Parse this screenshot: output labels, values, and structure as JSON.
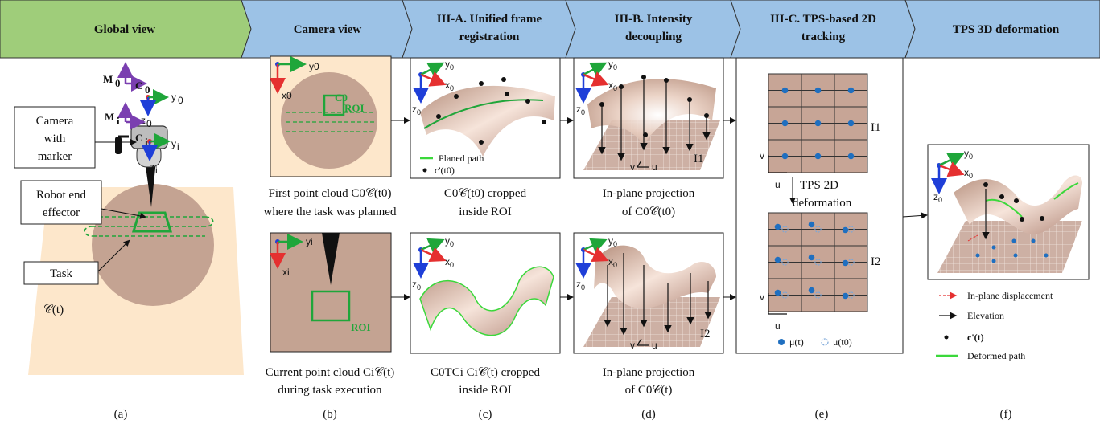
{
  "headers": [
    {
      "id": "global",
      "text": "Global view",
      "line2": ""
    },
    {
      "id": "camera",
      "text": "Camera view",
      "line2": ""
    },
    {
      "id": "iiia",
      "text": "III-A. Unified frame",
      "line2": "registration"
    },
    {
      "id": "iiib",
      "text": "III-B. Intensity",
      "line2": "decoupling"
    },
    {
      "id": "iiic",
      "text": "III-C. TPS-based 2D",
      "line2": "tracking"
    },
    {
      "id": "tps3d",
      "text": "TPS 3D deformation",
      "line2": ""
    }
  ],
  "global_view": {
    "camera_label": [
      "Camera",
      "with",
      "marker"
    ],
    "effector_label": [
      "Robot end",
      "effector"
    ],
    "task_label": "Task",
    "cloud_label": "𝒞(t)",
    "frames": {
      "m0": "M",
      "m0_sub": "0",
      "c0": "C",
      "c0_sub": "0",
      "mi": "M",
      "mi_sub": "i",
      "ci": "C",
      "ci_sub": "i",
      "y0": "y",
      "y0_sub": "0",
      "z0": "z",
      "z0_sub": "0",
      "yi": "y",
      "yi_sub": "i",
      "zi": "z",
      "zi_sub": "i"
    }
  },
  "panels": {
    "b_top": {
      "y_axis": "y0",
      "x_axis": "x0",
      "roi": "ROI",
      "roi_sup": "C0",
      "caption": [
        "First point cloud C0𝒞(t0)",
        "where the task was planned"
      ]
    },
    "b_bottom": {
      "y_axis": "yi",
      "x_axis": "xi",
      "roi": "ROI",
      "caption": [
        "Current point cloud Ci𝒞(t)",
        "during task execution"
      ]
    },
    "c_top": {
      "legend_path": "Planed path",
      "legend_points": "c'(t0)",
      "caption": [
        "C0𝒞(t0) cropped",
        "inside ROI"
      ]
    },
    "c_bottom": {
      "caption": [
        "C0TCi Ci𝒞(t) cropped",
        "inside ROI"
      ]
    },
    "d_top": {
      "image": "I1",
      "caption": [
        "In-plane projection",
        "of C0𝒞(t0)"
      ]
    },
    "d_bottom": {
      "image": "I2",
      "caption": [
        "In-plane projection",
        "of C0𝒞(t)"
      ]
    },
    "e": {
      "image_top": "I1",
      "image_bottom": "I2",
      "deform_label": [
        "TPS 2D",
        "deformation"
      ],
      "legend_mu_t": "μ(t)",
      "legend_mu_t0": "μ(t0)"
    },
    "f": {
      "legend": [
        {
          "kind": "dashed-red",
          "text": "In-plane displacement"
        },
        {
          "kind": "arrow-black",
          "text": "Elevation"
        },
        {
          "kind": "dot-black",
          "text": "c'(t)"
        },
        {
          "kind": "line-green",
          "text": "Deformed path"
        }
      ]
    }
  },
  "sublabels": [
    "(a)",
    "(b)",
    "(c)",
    "(d)",
    "(e)",
    "(f)"
  ],
  "colors": {
    "header_green": "#9fcd7a",
    "header_blue": "#9cc2e6",
    "skin": "#c4a392",
    "plane": "#fde7cb",
    "roi": "#1fa63a",
    "grid_cell": "#c7a596",
    "point_blue": "#1f6fc0"
  }
}
